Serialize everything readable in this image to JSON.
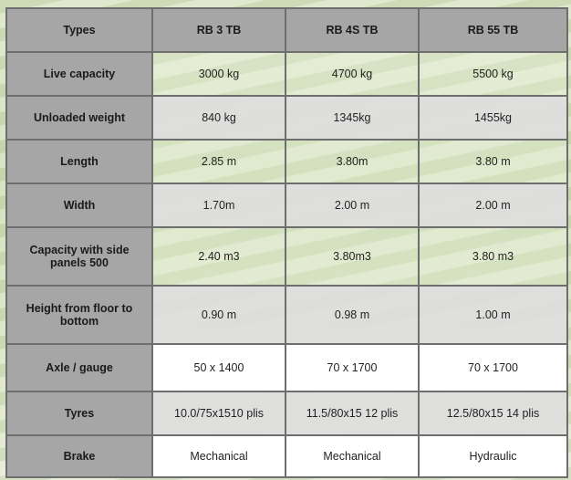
{
  "header": [
    "Types",
    "RB 3 TB",
    "RB 4S TB",
    "RB 55 TB"
  ],
  "rows": [
    {
      "label": "Live capacity",
      "values": [
        "3000 kg",
        "4700 kg",
        "5500 kg"
      ],
      "style": "clear"
    },
    {
      "label": "Unloaded weight",
      "values": [
        "840 kg",
        "1345kg",
        "1455kg"
      ],
      "style": "gray"
    },
    {
      "label": "Length",
      "values": [
        "2.85 m",
        "3.80m",
        "3.80 m"
      ],
      "style": "clear"
    },
    {
      "label": "Width",
      "values": [
        "1.70m",
        "2.00 m",
        "2.00 m"
      ],
      "style": "gray"
    },
    {
      "label": "Capacity with side panels 500",
      "values": [
        "2.40 m3",
        "3.80m3",
        "3.80 m3"
      ],
      "style": "clear"
    },
    {
      "label": "Height from floor to bottom",
      "values": [
        "0.90 m",
        "0.98 m",
        "1.00 m"
      ],
      "style": "gray"
    },
    {
      "label": "Axle / gauge",
      "values": [
        "50 x 1400",
        "70 x 1700",
        "70 x 1700"
      ],
      "style": "white"
    },
    {
      "label": "Tyres",
      "values": [
        "10.0/75x1510 plis",
        "11.5/80x15 12 plis",
        "12.5/80x15 14 plis"
      ],
      "style": "gray"
    },
    {
      "label": "Brake",
      "values": [
        "Mechanical",
        "Mechanical",
        "Hydraulic"
      ],
      "style": "white"
    }
  ],
  "colors": {
    "header_bg": "#a6a6a6",
    "border": "#6e6e6e",
    "gray_row": "#dedede",
    "white_row": "#ffffff"
  }
}
